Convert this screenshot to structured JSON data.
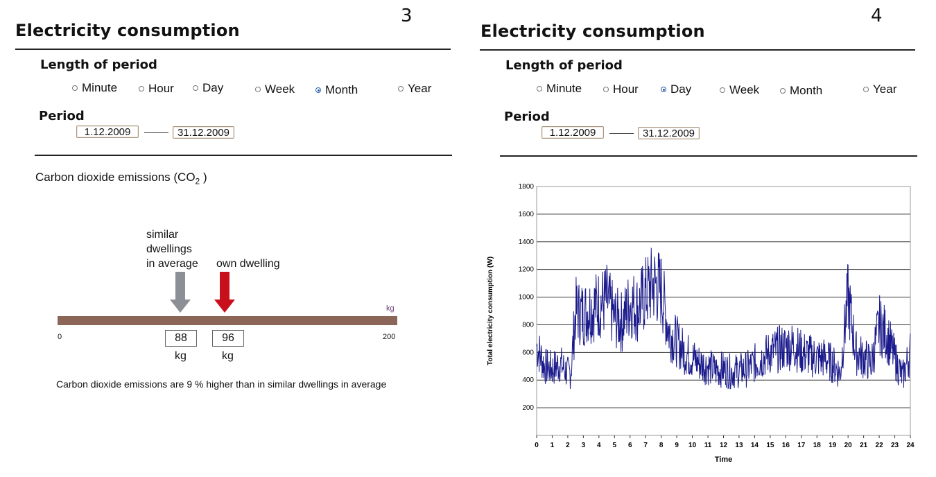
{
  "left": {
    "page_number": "3",
    "title": "Electricity consumption",
    "length_label": "Length of period",
    "period_options": [
      {
        "label": "Minute",
        "selected": false
      },
      {
        "label": "Hour",
        "selected": false
      },
      {
        "label": "Day",
        "selected": false
      },
      {
        "label": "Week",
        "selected": false
      },
      {
        "label": "Month",
        "selected": true
      },
      {
        "label": "Year",
        "selected": false
      }
    ],
    "period_label": "Period",
    "start_date": "1.12.2009",
    "end_date": "31.12.2009",
    "co2": {
      "title_prefix": "Carbon dioxide emissions (CO",
      "title_sub": "2",
      "title_suffix": " )",
      "similar_label_1": "similar",
      "similar_label_2": "dwellings",
      "similar_label_3": "in average",
      "own_label": "own dwelling",
      "axis_min": "0",
      "axis_max": "200",
      "unit": "kg",
      "similar_value": "88",
      "own_value": "96",
      "similar_unit": "kg",
      "own_unit": "kg",
      "similar_color": "#8c8f96",
      "own_color": "#c8101c",
      "bar_color": "#8b6558",
      "footnote": "Carbon dioxide emissions are 9 % higher than in similar dwellings in average"
    }
  },
  "right": {
    "page_number": "4",
    "title": "Electricity consumption",
    "length_label": "Length of period",
    "period_options": [
      {
        "label": "Minute",
        "selected": false
      },
      {
        "label": "Hour",
        "selected": false
      },
      {
        "label": "Day",
        "selected": true
      },
      {
        "label": "Week",
        "selected": false
      },
      {
        "label": "Month",
        "selected": false
      },
      {
        "label": "Year",
        "selected": false
      }
    ],
    "period_label": "Period",
    "start_date": "1.12.2009",
    "end_date": "31.12.2009"
  },
  "chart_data": {
    "type": "line",
    "xlabel": "Time",
    "ylabel": "Total electricity consumption (W)",
    "xlim": [
      0,
      24
    ],
    "ylim": [
      0,
      1800
    ],
    "x_ticks": [
      "0",
      "1",
      "2",
      "3",
      "4",
      "5",
      "6",
      "7",
      "8",
      "9",
      "10",
      "11",
      "12",
      "13",
      "14",
      "15",
      "16",
      "17",
      "18",
      "19",
      "20",
      "21",
      "22",
      "23",
      "24"
    ],
    "y_ticks": [
      "200",
      "400",
      "600",
      "800",
      "1000",
      "1200",
      "1400",
      "1600",
      "1800"
    ],
    "grid": true,
    "line_color": "#1a1a8c",
    "series": [
      {
        "x": [
          0,
          0.5,
          1,
          1.5,
          2,
          2.2,
          2.5,
          3,
          3.5,
          4,
          4.5,
          5,
          5.5,
          6,
          6.5,
          7,
          7.5,
          8,
          8.5,
          9,
          9.5,
          10,
          10.5,
          11,
          11.5,
          12,
          12.5,
          13,
          13.5,
          14,
          14.5,
          15,
          15.5,
          16,
          16.5,
          17,
          17.5,
          18,
          18.5,
          19,
          19.5,
          19.8,
          20,
          20.5,
          21,
          21.5,
          22,
          22.5,
          23,
          23.5,
          24
        ],
        "y": [
          650,
          500,
          480,
          520,
          450,
          460,
          900,
          880,
          920,
          950,
          980,
          850,
          820,
          960,
          920,
          1020,
          1100,
          1050,
          750,
          680,
          600,
          560,
          520,
          500,
          470,
          480,
          460,
          470,
          480,
          520,
          560,
          600,
          620,
          640,
          650,
          600,
          580,
          560,
          560,
          520,
          450,
          800,
          1000,
          600,
          560,
          520,
          800,
          720,
          560,
          420,
          600
        ]
      }
    ]
  }
}
